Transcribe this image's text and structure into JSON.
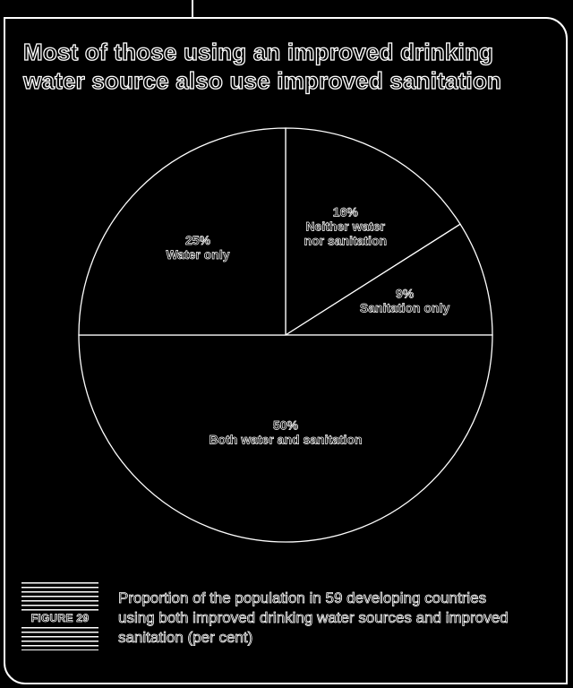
{
  "title": "Most of those using an improved drinking water source also use improved sanitation",
  "figure_label": "FIGURE 29",
  "caption": "Proportion of the population in 59 developing countries using both improved drinking water sources and improved sanitation (per cent)",
  "colors": {
    "background": "#000000",
    "line": "#ffffff"
  },
  "chart_data": {
    "type": "pie",
    "title": "Most of those using an improved drinking water source also use improved sanitation",
    "slices": [
      {
        "label": "Neither water nor sanitation",
        "value": 16,
        "value_label": "16%",
        "label_lines": [
          "Neither water",
          "nor sanitation"
        ]
      },
      {
        "label": "Sanitation only",
        "value": 9,
        "value_label": "9%",
        "label_lines": [
          "Sanitation only"
        ]
      },
      {
        "label": "Both water and sanitation",
        "value": 50,
        "value_label": "50%",
        "label_lines": [
          "Both water and sanitation"
        ]
      },
      {
        "label": "Water only",
        "value": 25,
        "value_label": "25%",
        "label_lines": [
          "Water only"
        ]
      }
    ],
    "start": "top, clockwise",
    "legend": "none"
  }
}
